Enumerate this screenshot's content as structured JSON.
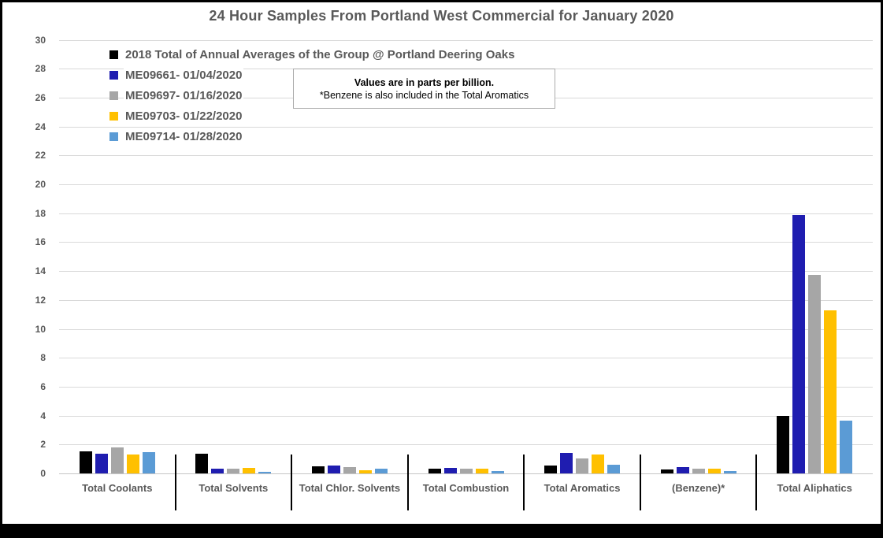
{
  "chart_data": {
    "type": "bar",
    "title": "24 Hour Samples From Portland West Commercial for January 2020",
    "note": {
      "line1": "Values are in parts per billion.",
      "line2": "*Benzene is also included in the Total Aromatics"
    },
    "unit": "parts per billion",
    "categories": [
      "Total Coolants",
      "Total Solvents",
      "Total Chlor. Solvents",
      "Total Combustion",
      "Total Aromatics",
      "(Benzene)*",
      "Total Aliphatics"
    ],
    "series": [
      {
        "name": "2018 Total of Annual Averages of the Group @ Portland Deering Oaks",
        "color": "#000000",
        "values": [
          1.5,
          1.35,
          0.5,
          0.35,
          0.55,
          0.25,
          4.0
        ]
      },
      {
        "name": "ME09661- 01/04/2020",
        "color": "#1F1DB0",
        "values": [
          1.35,
          0.3,
          0.55,
          0.4,
          1.4,
          0.45,
          17.9
        ]
      },
      {
        "name": "ME09697- 01/16/2020",
        "color": "#A6A6A6",
        "values": [
          1.8,
          0.3,
          0.45,
          0.3,
          1.05,
          0.35,
          13.75
        ]
      },
      {
        "name": "ME09703- 01/22/2020",
        "color": "#FFC000",
        "values": [
          1.3,
          0.4,
          0.2,
          0.35,
          1.3,
          0.35,
          11.3
        ]
      },
      {
        "name": "ME09714- 01/28/2020",
        "color": "#5B9BD5",
        "values": [
          1.45,
          0.1,
          0.35,
          0.15,
          0.6,
          0.15,
          3.65
        ]
      }
    ],
    "ylim": [
      0,
      30
    ],
    "yticks": [
      0,
      2,
      4,
      6,
      8,
      10,
      12,
      14,
      16,
      18,
      20,
      22,
      24,
      26,
      28,
      30
    ],
    "grid": true,
    "legend_position": "top-left",
    "colors": {
      "gridline": "#D9D9D9",
      "axis_text": "#595959",
      "category_divider": "#000000",
      "note_border": "#ABABAB",
      "frame_border": "#000000"
    }
  }
}
